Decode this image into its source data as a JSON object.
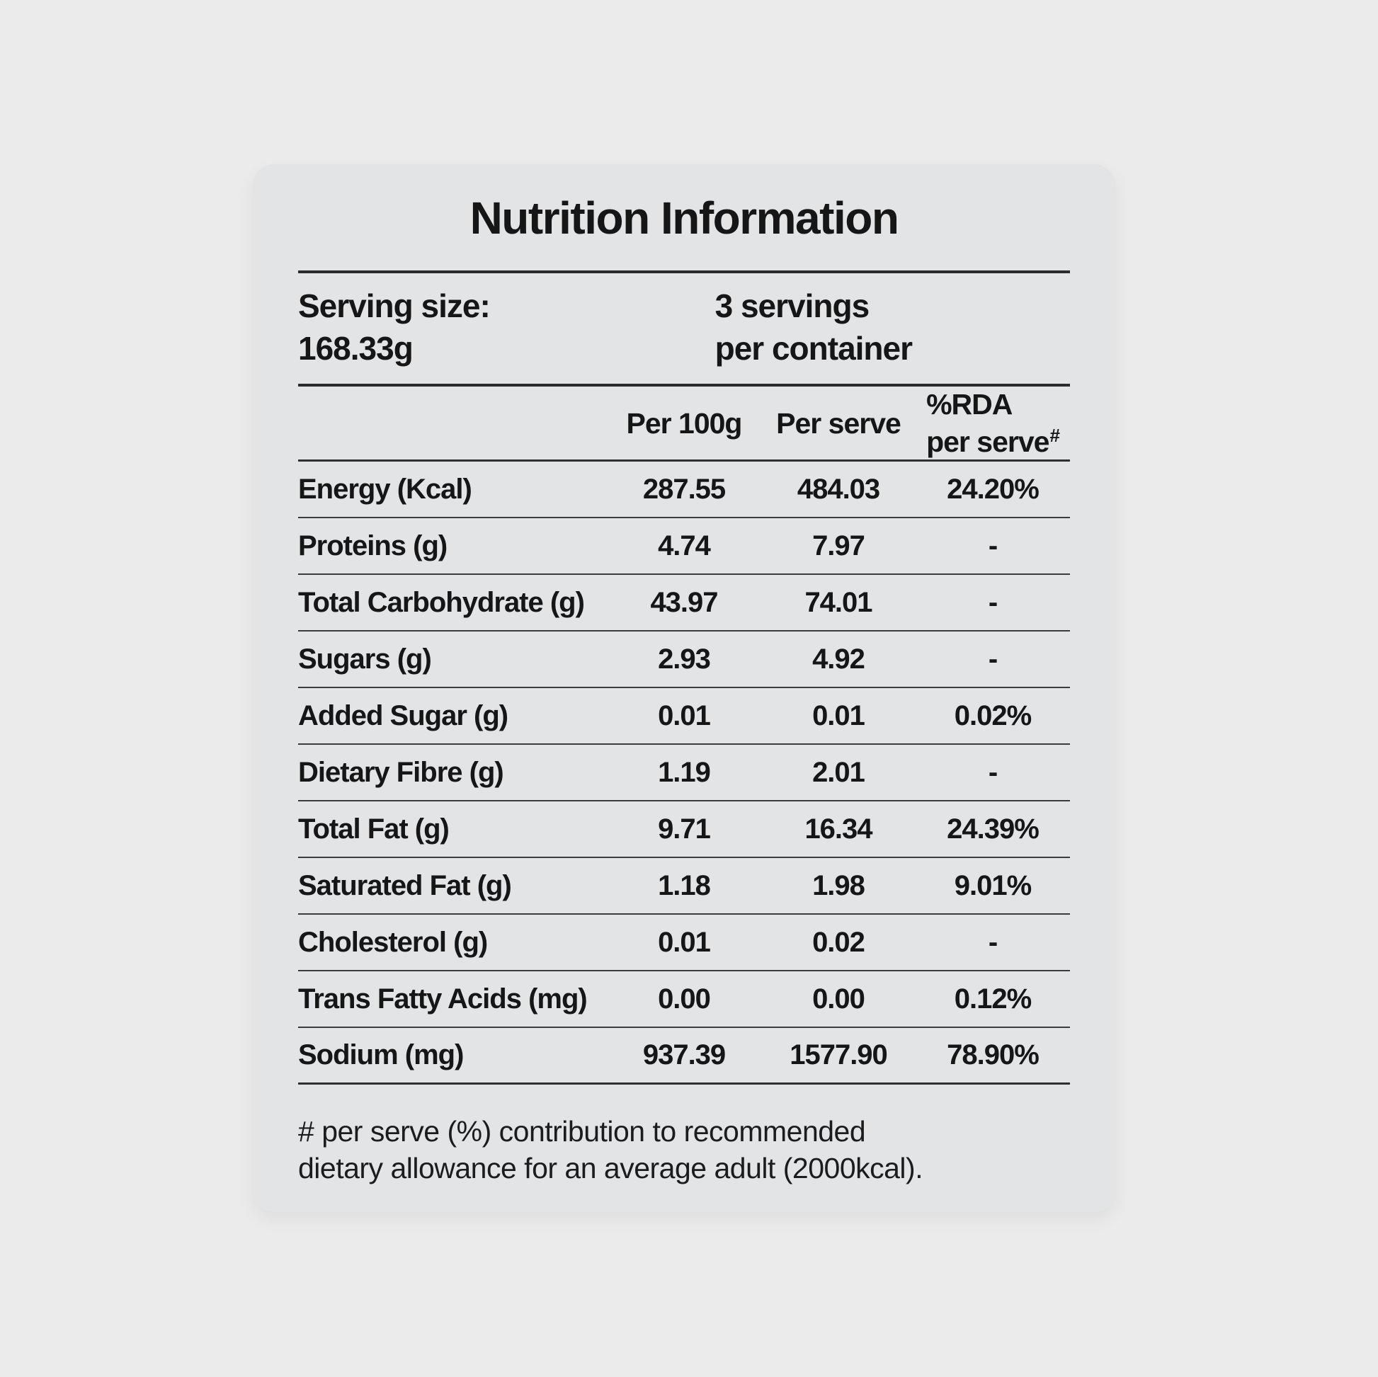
{
  "page_title": "Nutrition Information",
  "serving": {
    "size_label": "Serving size:",
    "size_value": "168.33g",
    "container_line1": "3 servings",
    "container_line2": "per container"
  },
  "table": {
    "headers": {
      "per_100g": "Per 100g",
      "per_serve": "Per serve",
      "rda_line1": "%RDA",
      "rda_line2": "per serve",
      "rda_sup": "#"
    },
    "rows": [
      {
        "nutrient": "Energy (Kcal)",
        "per_100g": "287.55",
        "per_serve": "484.03",
        "rda": "24.20%"
      },
      {
        "nutrient": "Proteins (g)",
        "per_100g": "4.74",
        "per_serve": "7.97",
        "rda": "-"
      },
      {
        "nutrient": "Total Carbohydrate (g)",
        "per_100g": "43.97",
        "per_serve": "74.01",
        "rda": "-"
      },
      {
        "nutrient": "Sugars (g)",
        "per_100g": "2.93",
        "per_serve": "4.92",
        "rda": "-"
      },
      {
        "nutrient": "Added Sugar (g)",
        "per_100g": "0.01",
        "per_serve": "0.01",
        "rda": "0.02%"
      },
      {
        "nutrient": "Dietary Fibre (g)",
        "per_100g": "1.19",
        "per_serve": "2.01",
        "rda": "-"
      },
      {
        "nutrient": "Total Fat (g)",
        "per_100g": "9.71",
        "per_serve": "16.34",
        "rda": "24.39%"
      },
      {
        "nutrient": "Saturated Fat (g)",
        "per_100g": "1.18",
        "per_serve": "1.98",
        "rda": "9.01%"
      },
      {
        "nutrient": "Cholesterol (g)",
        "per_100g": "0.01",
        "per_serve": "0.02",
        "rda": "-"
      },
      {
        "nutrient": "Trans Fatty Acids (mg)",
        "per_100g": "0.00",
        "per_serve": "0.00",
        "rda": "0.12%"
      },
      {
        "nutrient": "Sodium (mg)",
        "per_100g": "937.39",
        "per_serve": "1577.90",
        "rda": "78.90%"
      }
    ]
  },
  "footnote": {
    "line1": "# per serve (%) contribution to recommended",
    "line2": "dietary allowance for an average adult (2000kcal)."
  },
  "colors": {
    "page_bg": "#ebebeb",
    "card_bg": "#e3e4e6",
    "text": "#161616",
    "line": "#2f2f2f"
  }
}
